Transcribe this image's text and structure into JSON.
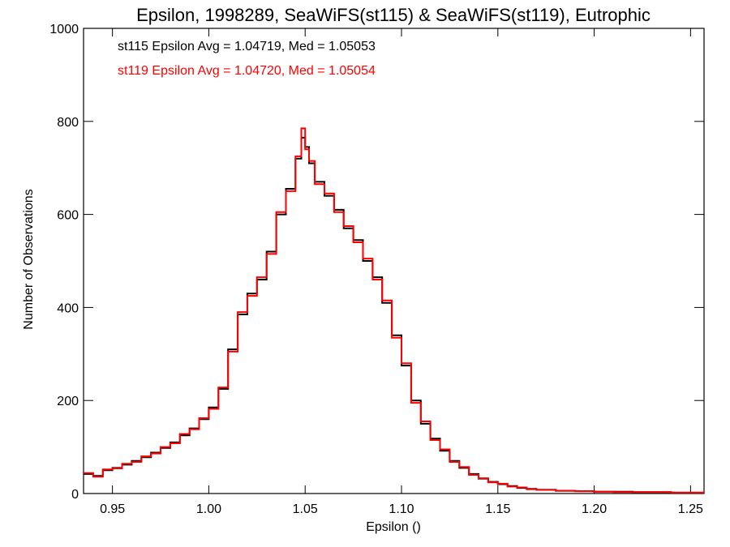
{
  "chart_data": {
    "type": "line",
    "style": "histogram-step",
    "title": "Epsilon, 1998289, SeaWiFS(st115) & SeaWiFS(st119), Eutrophic",
    "xlabel": "Epsilon ()",
    "ylabel": "Number of Observations",
    "xlim": [
      0.935,
      1.257
    ],
    "ylim": [
      0,
      1000
    ],
    "x_ticks": [
      0.95,
      1.0,
      1.05,
      1.1,
      1.15,
      1.2,
      1.25
    ],
    "x_tick_labels": [
      "0.95",
      "1.00",
      "1.05",
      "1.10",
      "1.15",
      "1.20",
      "1.25"
    ],
    "y_ticks": [
      0,
      200,
      400,
      600,
      800,
      1000
    ],
    "y_tick_labels": [
      "0",
      "200",
      "400",
      "600",
      "800",
      "1000"
    ],
    "grid": false,
    "annotations": [
      {
        "text": "st115 Epsilon Avg = 1.04719, Med = 1.05053",
        "color": "#000000"
      },
      {
        "text": "st119 Epsilon Avg = 1.04720, Med = 1.05054",
        "color": "#ff0000"
      }
    ],
    "series": [
      {
        "name": "st115",
        "color": "#000000",
        "x": [
          0.935,
          0.94,
          0.945,
          0.95,
          0.955,
          0.96,
          0.965,
          0.97,
          0.975,
          0.98,
          0.985,
          0.99,
          0.995,
          1.0,
          1.005,
          1.01,
          1.015,
          1.02,
          1.025,
          1.03,
          1.035,
          1.04,
          1.045,
          1.048,
          1.05,
          1.052,
          1.055,
          1.06,
          1.065,
          1.07,
          1.075,
          1.08,
          1.085,
          1.09,
          1.095,
          1.1,
          1.105,
          1.11,
          1.115,
          1.12,
          1.125,
          1.13,
          1.135,
          1.14,
          1.145,
          1.15,
          1.155,
          1.16,
          1.165,
          1.17,
          1.18,
          1.19,
          1.2,
          1.21,
          1.22,
          1.23,
          1.24,
          1.25,
          1.257
        ],
        "values": [
          42,
          38,
          50,
          55,
          62,
          70,
          78,
          88,
          98,
          110,
          125,
          140,
          160,
          185,
          225,
          310,
          385,
          430,
          460,
          520,
          600,
          655,
          720,
          765,
          745,
          710,
          670,
          640,
          610,
          570,
          545,
          500,
          465,
          410,
          340,
          275,
          200,
          150,
          118,
          92,
          70,
          55,
          42,
          32,
          25,
          20,
          16,
          12,
          10,
          8,
          6,
          5,
          4,
          4,
          3,
          3,
          2,
          2,
          2
        ]
      },
      {
        "name": "st119",
        "color": "#ff0000",
        "x": [
          0.935,
          0.94,
          0.945,
          0.95,
          0.955,
          0.96,
          0.965,
          0.97,
          0.975,
          0.98,
          0.985,
          0.99,
          0.995,
          1.0,
          1.005,
          1.01,
          1.015,
          1.02,
          1.025,
          1.03,
          1.035,
          1.04,
          1.045,
          1.048,
          1.05,
          1.052,
          1.055,
          1.06,
          1.065,
          1.07,
          1.075,
          1.08,
          1.085,
          1.09,
          1.095,
          1.1,
          1.105,
          1.11,
          1.115,
          1.12,
          1.125,
          1.13,
          1.135,
          1.14,
          1.145,
          1.15,
          1.155,
          1.16,
          1.165,
          1.17,
          1.18,
          1.19,
          1.2,
          1.21,
          1.22,
          1.23,
          1.24,
          1.25,
          1.257
        ],
        "values": [
          44,
          36,
          52,
          54,
          64,
          68,
          80,
          86,
          100,
          108,
          128,
          138,
          162,
          182,
          228,
          305,
          390,
          425,
          465,
          515,
          605,
          650,
          725,
          785,
          740,
          715,
          665,
          645,
          605,
          575,
          540,
          505,
          460,
          415,
          335,
          280,
          195,
          155,
          115,
          95,
          68,
          57,
          40,
          33,
          24,
          21,
          15,
          13,
          9,
          8,
          6,
          5,
          4,
          3,
          3,
          3,
          2,
          2,
          2
        ]
      }
    ]
  }
}
